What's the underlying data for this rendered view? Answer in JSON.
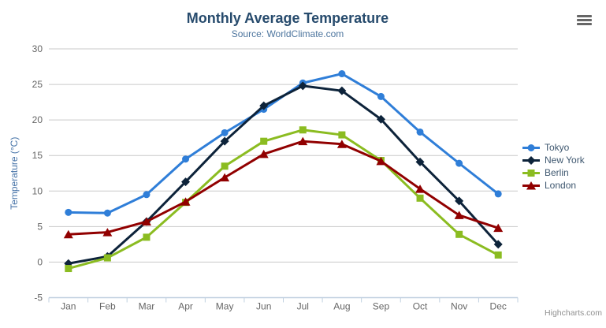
{
  "credits_label": "Highcharts.com",
  "colors": {
    "title": "#274b6d",
    "subtitle": "#4d759e",
    "axis_labels": "#666666",
    "y_axis_title": "#4572a7",
    "legend_text": "#3e576f",
    "grid_line": "#c9c9c9",
    "axis_line": "#c0d0e0",
    "credits": "#909090",
    "menu_icon": "#666666"
  },
  "chart_data": {
    "type": "line",
    "title": "Monthly Average Temperature",
    "subtitle": "Source: WorldClimate.com",
    "xlabel": "",
    "ylabel": "Temperature (°C)",
    "ylim": [
      -5,
      30
    ],
    "ytick_step": 5,
    "grid": true,
    "legend_position": "right",
    "categories": [
      "Jan",
      "Feb",
      "Mar",
      "Apr",
      "May",
      "Jun",
      "Jul",
      "Aug",
      "Sep",
      "Oct",
      "Nov",
      "Dec"
    ],
    "series": [
      {
        "name": "Tokyo",
        "color": "#2f7ed8",
        "marker": "circle",
        "values": [
          7.0,
          6.9,
          9.5,
          14.5,
          18.2,
          21.5,
          25.2,
          26.5,
          23.3,
          18.3,
          13.9,
          9.6
        ]
      },
      {
        "name": "New York",
        "color": "#0d233a",
        "marker": "diamond",
        "values": [
          -0.2,
          0.8,
          5.7,
          11.3,
          17.0,
          22.0,
          24.8,
          24.1,
          20.1,
          14.1,
          8.6,
          2.5
        ]
      },
      {
        "name": "Berlin",
        "color": "#8bbc21",
        "marker": "square",
        "values": [
          -0.9,
          0.6,
          3.5,
          8.4,
          13.5,
          17.0,
          18.6,
          17.9,
          14.3,
          9.0,
          3.9,
          1.0
        ]
      },
      {
        "name": "London",
        "color": "#910000",
        "marker": "triangle",
        "values": [
          3.9,
          4.2,
          5.7,
          8.5,
          11.9,
          15.2,
          17.0,
          16.6,
          14.2,
          10.3,
          6.6,
          4.8
        ]
      }
    ]
  }
}
